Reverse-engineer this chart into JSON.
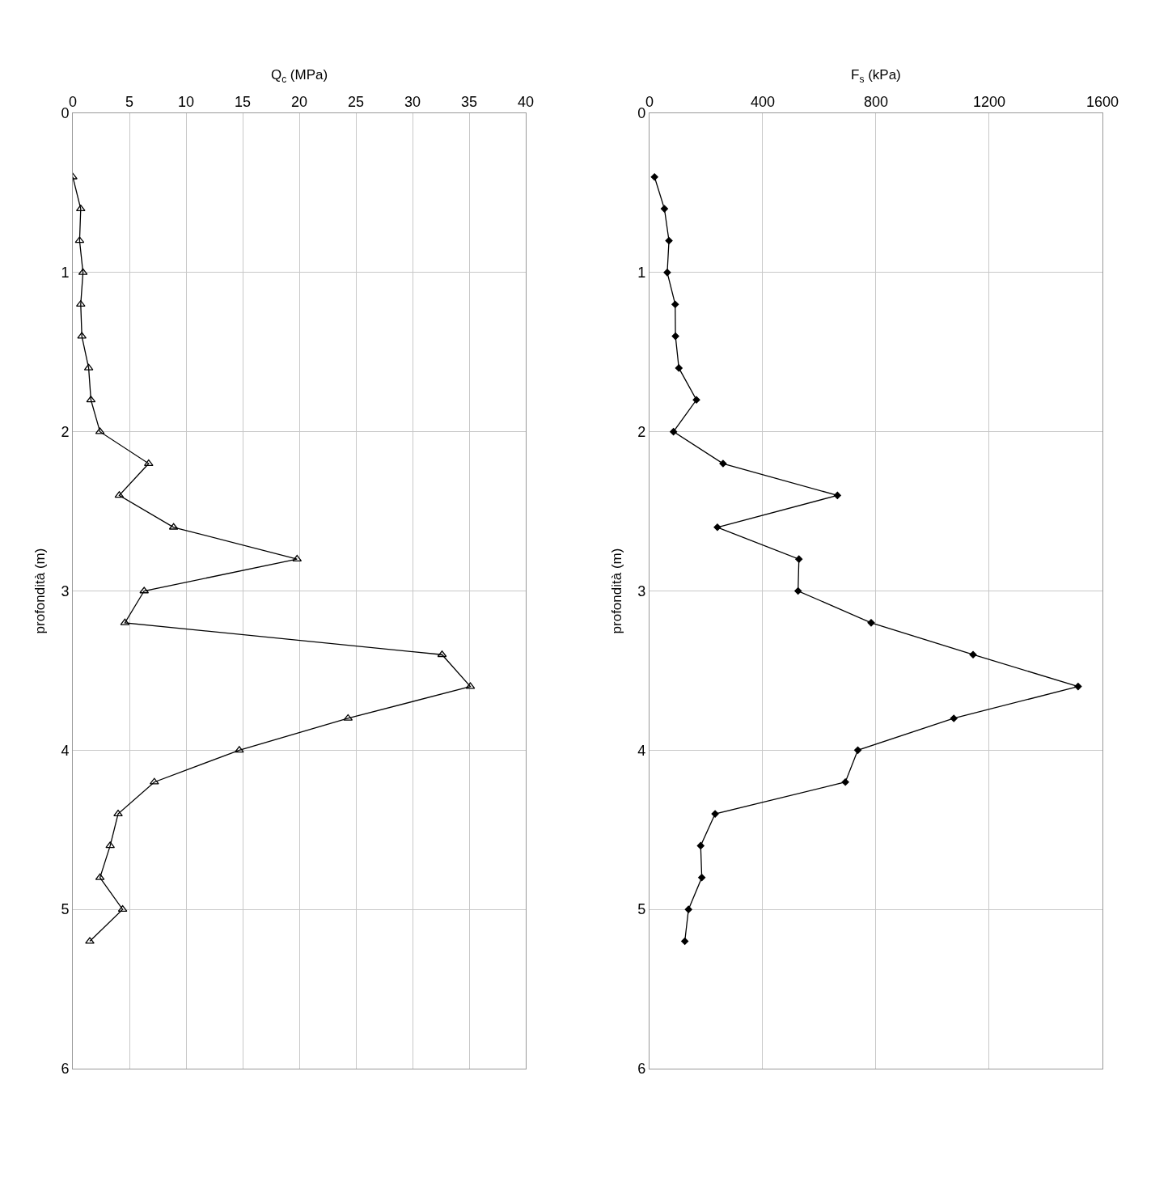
{
  "chart_data": [
    {
      "type": "line",
      "orientation": "horizontal",
      "xlabel": "Q$_{c}$ (MPa)",
      "ylabel": "profondità (m)",
      "marker": "triangle",
      "line_style": "solid",
      "grid": true,
      "x": [
        0.4,
        0.6,
        0.8,
        1.0,
        1.2,
        1.4,
        1.6,
        1.8,
        2.0,
        2.2,
        2.4,
        2.6,
        2.8,
        3.0,
        3.2,
        3.4,
        3.6,
        3.8,
        4.0,
        4.2,
        4.4,
        4.6,
        4.8,
        5.0,
        5.2
      ],
      "series": [
        {
          "color": "#000000",
          "values": [
            0.0,
            0.7,
            0.6,
            0.9,
            0.7,
            0.8,
            1.4,
            1.6,
            2.4,
            6.7,
            4.1,
            8.9,
            19.8,
            6.3,
            4.6,
            32.6,
            35.1,
            24.3,
            14.7,
            7.2,
            4.0,
            3.3,
            2.4,
            4.4,
            1.5
          ]
        }
      ],
      "xlim": [
        0,
        40
      ],
      "xticks": [
        0,
        5,
        10,
        15,
        20,
        25,
        30,
        35,
        40
      ],
      "ylim": [
        6,
        0
      ],
      "yticks": [
        0,
        1,
        2,
        3,
        4,
        5,
        6
      ]
    },
    {
      "type": "line",
      "orientation": "horizontal",
      "xlabel": "F$_{s}$ (kPa)",
      "ylabel": "profondità (m)",
      "marker": "diamond",
      "line_style": "solid",
      "grid": true,
      "x": [
        0.4,
        0.6,
        0.8,
        1.0,
        1.2,
        1.4,
        1.6,
        1.8,
        2.0,
        2.2,
        2.4,
        2.6,
        2.8,
        3.0,
        3.2,
        3.4,
        3.6,
        3.8,
        4.0,
        4.2,
        4.4,
        4.6,
        4.8,
        5.0,
        5.2
      ],
      "series": [
        {
          "color": "#000000",
          "values": [
            18,
            53,
            69,
            63,
            91,
            92,
            104,
            166,
            85,
            260,
            664,
            240,
            528,
            525,
            783,
            1143,
            1514,
            1075,
            736,
            692,
            232,
            181,
            185,
            138,
            125
          ]
        }
      ],
      "xlim": [
        0,
        1600
      ],
      "xticks": [
        0,
        400,
        800,
        1200,
        1600
      ],
      "ylim": [
        6,
        0
      ],
      "yticks": [
        0,
        1,
        2,
        3,
        4,
        5,
        6
      ]
    }
  ]
}
